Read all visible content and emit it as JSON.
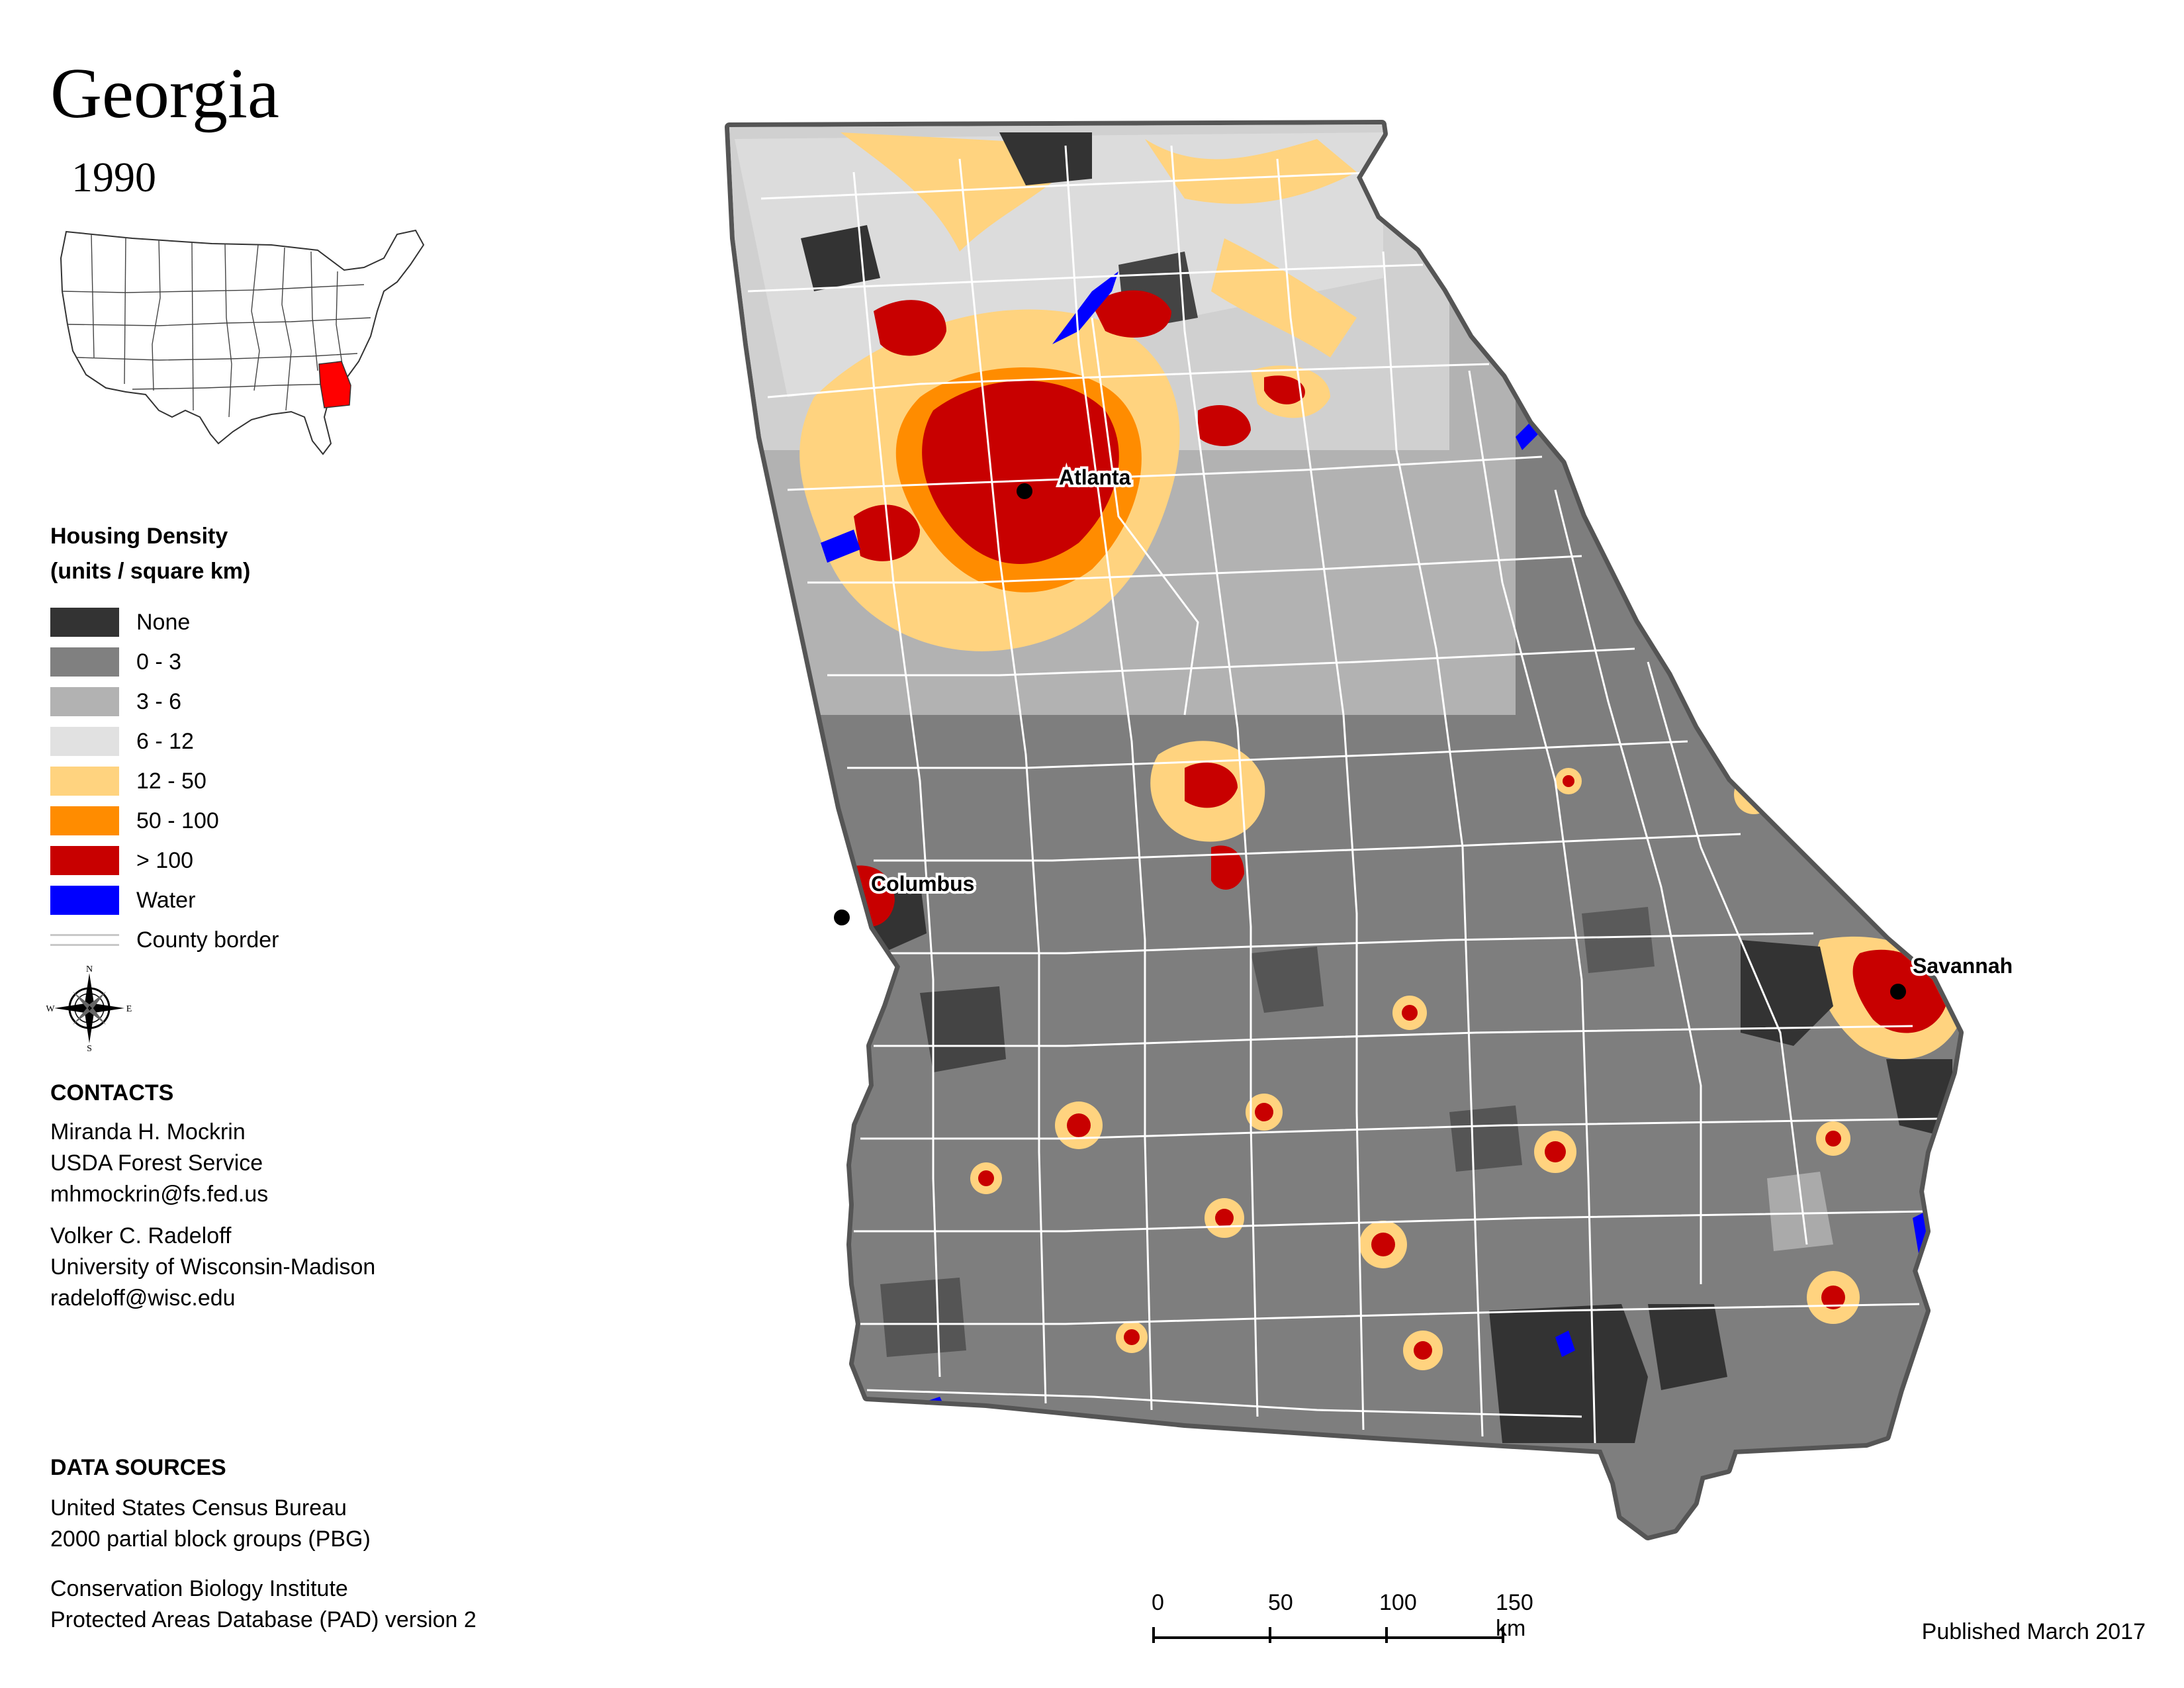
{
  "title": "Georgia",
  "year": "1990",
  "legend": {
    "title_line1": "Housing Density",
    "title_line2": "(units / square km)",
    "items": [
      {
        "label": "None",
        "color": "#333333"
      },
      {
        "label": "0 - 3",
        "color": "#808080"
      },
      {
        "label": "3 - 6",
        "color": "#b2b2b2"
      },
      {
        "label": "6 - 12",
        "color": "#e1e1e1"
      },
      {
        "label": "12 - 50",
        "color": "#ffd37f"
      },
      {
        "label": "50 - 100",
        "color": "#ff8c00"
      },
      {
        "label": "> 100",
        "color": "#c80000"
      },
      {
        "label": "Water",
        "color": "#0000ff"
      }
    ],
    "county_border_label": "County border"
  },
  "compass": {
    "n": "N",
    "s": "S",
    "e": "E",
    "w": "W"
  },
  "cities": {
    "atlanta": "Atlanta",
    "columbus": "Columbus",
    "savannah": "Savannah"
  },
  "contacts": {
    "heading": "CONTACTS",
    "person1": {
      "name": "Miranda H. Mockrin",
      "org": "USDA Forest Service",
      "email": "mhmockrin@fs.fed.us"
    },
    "person2": {
      "name": "Volker C. Radeloff",
      "org": "University of Wisconsin-Madison",
      "email": "radeloff@wisc.edu"
    }
  },
  "data_sources": {
    "heading": "DATA SOURCES",
    "line1": "United States Census Bureau",
    "line2": "2000 partial block groups (PBG)",
    "line3": "Conservation Biology Institute",
    "line4": "Protected Areas Database (PAD) version 2"
  },
  "scale_bar": {
    "ticks": [
      "0",
      "50",
      "100",
      "150 km"
    ]
  },
  "published": "Published March 2017"
}
